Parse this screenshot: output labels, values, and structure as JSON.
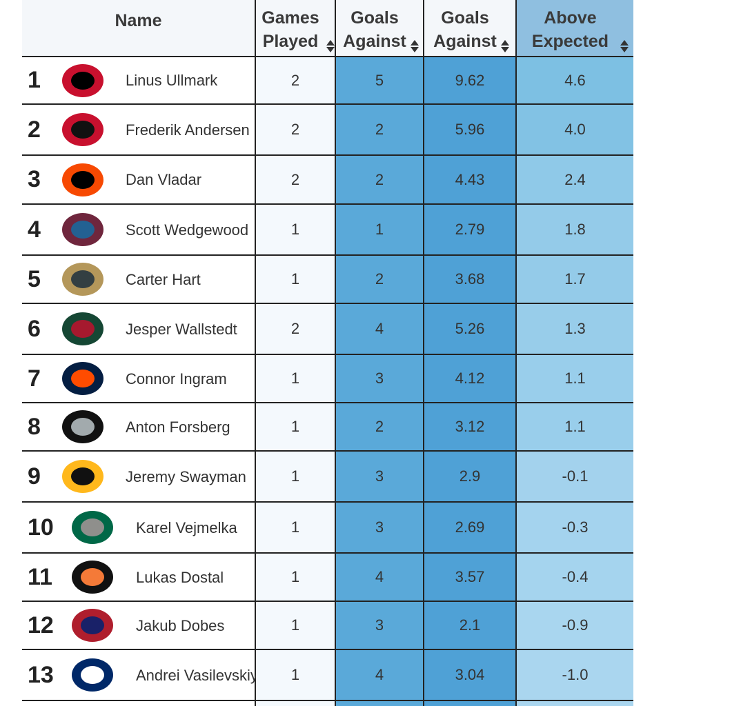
{
  "header": {
    "name": "Name",
    "games_played": "Games Played",
    "goals_against": "Goals Against",
    "expected_goals_against": "Goals Against",
    "above_expected": "Above Expected"
  },
  "table": {
    "rows": [
      [
        "1",
        "Linus Ullmark",
        "2",
        "5",
        "9.62",
        "4.6"
      ],
      [
        "2",
        "Frederik Andersen",
        "2",
        "2",
        "5.96",
        "4.0"
      ],
      [
        "3",
        "Dan Vladar",
        "2",
        "2",
        "4.43",
        "2.4"
      ],
      [
        "4",
        "Scott Wedgewood",
        "1",
        "1",
        "2.79",
        "1.8"
      ],
      [
        "5",
        "Carter Hart",
        "1",
        "2",
        "3.68",
        "1.7"
      ],
      [
        "6",
        "Jesper Wallstedt",
        "2",
        "4",
        "5.26",
        "1.3"
      ],
      [
        "7",
        "Connor Ingram",
        "1",
        "3",
        "4.12",
        "1.1"
      ],
      [
        "8",
        "Anton Forsberg",
        "1",
        "2",
        "3.12",
        "1.1"
      ],
      [
        "9",
        "Jeremy Swayman",
        "1",
        "3",
        "2.9",
        "-0.1"
      ],
      [
        "10",
        "Karel Vejmelka",
        "1",
        "3",
        "2.69",
        "-0.3"
      ],
      [
        "11",
        "Lukas Dostal",
        "1",
        "4",
        "3.57",
        "-0.4"
      ],
      [
        "12",
        "Jakub Dobes",
        "1",
        "3",
        "2.1",
        "-0.9"
      ],
      [
        "13",
        "Andrei Vasilevskiy",
        "1",
        "4",
        "3.04",
        "-1.0"
      ]
    ]
  }
}
